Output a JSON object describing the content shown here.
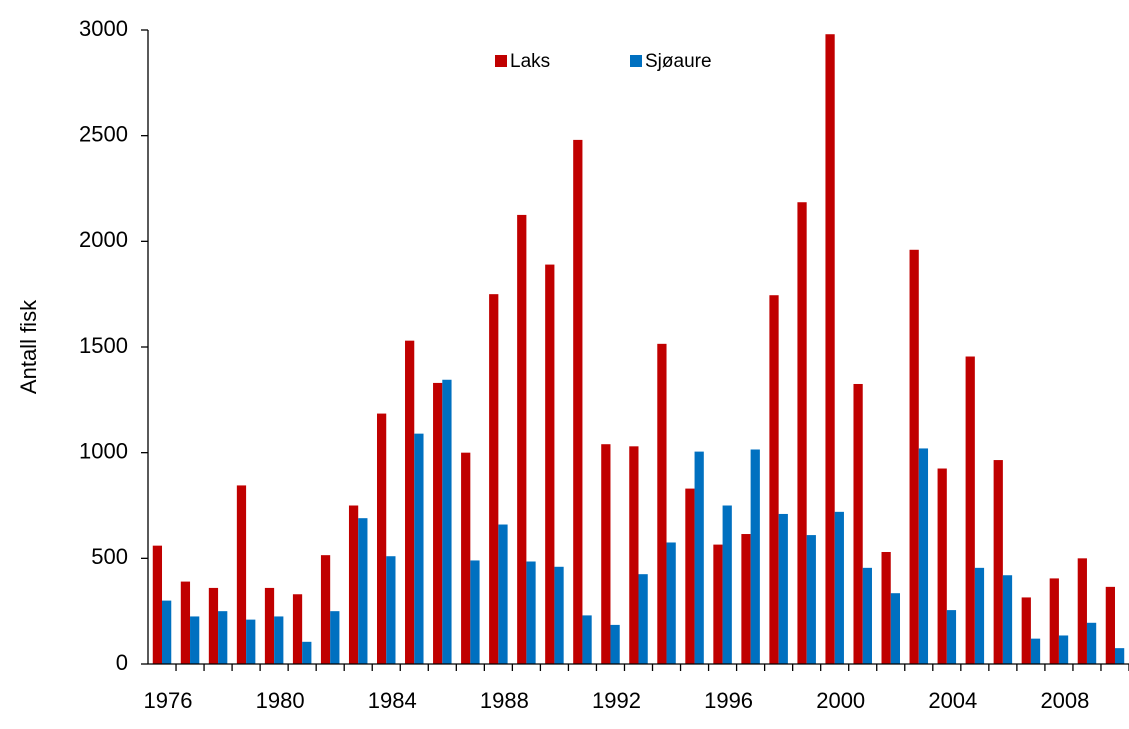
{
  "chart_data": {
    "type": "grouped-bar",
    "ylabel": "Antall fisk",
    "categories": [
      "1976",
      null,
      null,
      null,
      "1980",
      null,
      null,
      null,
      "1984",
      null,
      null,
      null,
      "1988",
      null,
      null,
      null,
      "1992",
      null,
      null,
      null,
      "1996",
      null,
      null,
      null,
      "2000",
      null,
      null,
      null,
      "2004",
      null,
      null,
      null,
      "2008",
      null,
      null
    ],
    "series": [
      {
        "name": "Laks",
        "color": "#c00000",
        "values": [
          560,
          390,
          360,
          845,
          360,
          330,
          515,
          750,
          1185,
          1530,
          1330,
          1000,
          1750,
          2125,
          1890,
          2480,
          1040,
          1030,
          1515,
          830,
          565,
          615,
          1745,
          2185,
          2980,
          1325,
          530,
          1960,
          925,
          1455,
          965,
          315,
          405,
          500,
          365
        ]
      },
      {
        "name": "Sjøaure",
        "color": "#0070c0",
        "values": [
          300,
          225,
          250,
          210,
          225,
          105,
          250,
          690,
          510,
          1090,
          1345,
          490,
          660,
          485,
          460,
          230,
          185,
          425,
          575,
          1005,
          750,
          1015,
          710,
          610,
          720,
          455,
          335,
          1020,
          255,
          455,
          420,
          120,
          135,
          195,
          75
        ]
      }
    ],
    "ylim": [
      0,
      3000
    ],
    "yticks": [
      0,
      500,
      1000,
      1500,
      2000,
      2500,
      3000
    ]
  }
}
